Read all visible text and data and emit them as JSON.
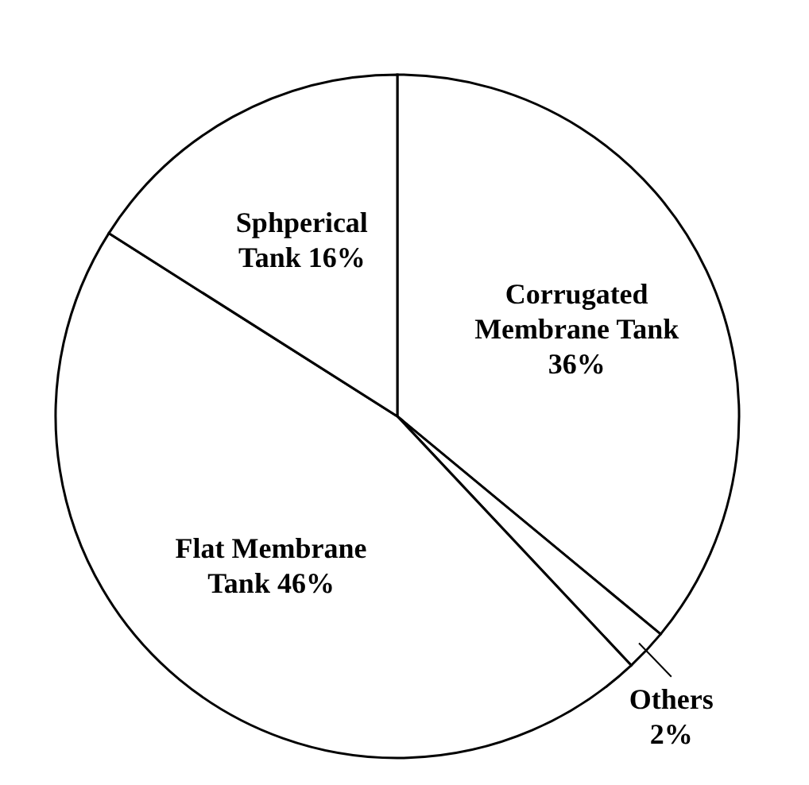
{
  "chart_data": {
    "type": "pie",
    "categories": [
      "Corrugated Membrane Tank",
      "Others",
      "Flat Membrane Tank",
      "Sphperical Tank"
    ],
    "values": [
      36,
      2,
      46,
      16
    ],
    "value_labels": [
      "36%",
      "2%",
      "46%",
      "16%"
    ],
    "colors": [
      "#ffffff",
      "#ffffff",
      "#ffffff",
      "#ffffff"
    ]
  }
}
